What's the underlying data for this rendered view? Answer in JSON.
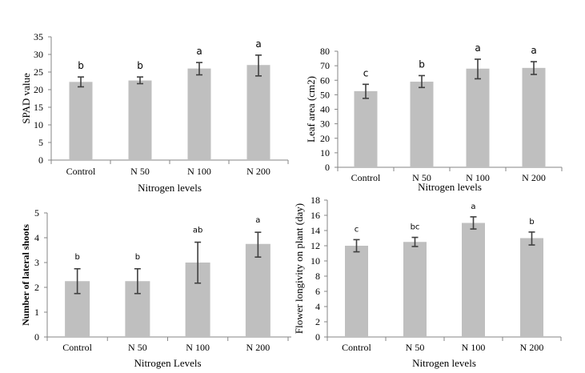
{
  "chart_data": [
    {
      "id": "spad",
      "type": "bar",
      "title": "",
      "xlabel": "Nitrogen levels",
      "ylabel": "SPAD value",
      "categories": [
        "Control",
        "N 50",
        "N 100",
        "N 200"
      ],
      "values": [
        22.2,
        22.6,
        26.0,
        27.0
      ],
      "error_low": [
        20.8,
        21.7,
        24.2,
        23.9
      ],
      "error_high": [
        23.6,
        23.6,
        27.7,
        29.8
      ],
      "significance": [
        "b",
        "b",
        "a",
        "a"
      ],
      "ylim": [
        0,
        35
      ],
      "yticks": [
        0,
        5,
        10,
        15,
        20,
        25,
        30,
        35
      ],
      "grid": false,
      "bar_color": "#bfbfbf"
    },
    {
      "id": "leaf-area",
      "type": "bar",
      "title": "",
      "xlabel": "Nitrogen levels",
      "ylabel": "Leaf area (cm2)",
      "categories": [
        "Control",
        "N 50",
        "N 100",
        "N 200"
      ],
      "values": [
        52.5,
        59.0,
        68.0,
        68.5
      ],
      "error_low": [
        47.5,
        55.0,
        61.0,
        64.0
      ],
      "error_high": [
        57.2,
        63.2,
        74.5,
        72.8
      ],
      "significance": [
        "c",
        "b",
        "a",
        "a"
      ],
      "ylim": [
        0,
        80
      ],
      "yticks": [
        0,
        10,
        20,
        30,
        40,
        50,
        60,
        70,
        80
      ],
      "grid": false,
      "bar_color": "#bfbfbf"
    },
    {
      "id": "lateral-shoots",
      "type": "bar",
      "title": "",
      "xlabel": "Nitrogen Levels",
      "ylabel": "Number of lateral shoots",
      "categories": [
        "Control",
        "N 50",
        "N 100",
        "N 200"
      ],
      "values": [
        2.25,
        2.25,
        3.0,
        3.75
      ],
      "error_low": [
        1.75,
        1.75,
        2.17,
        3.22
      ],
      "error_high": [
        2.75,
        2.75,
        3.82,
        4.22
      ],
      "significance": [
        "b",
        "b",
        "ab",
        "a"
      ],
      "ylim": [
        0,
        5
      ],
      "yticks": [
        0,
        1,
        2,
        3,
        4,
        5
      ],
      "grid": false,
      "bar_color": "#bfbfbf"
    },
    {
      "id": "flower-longevity",
      "type": "bar",
      "title": "",
      "xlabel": "Nitrogen levels",
      "ylabel": "Flower longivity on plant (day)",
      "categories": [
        "Control",
        "N 50",
        "N 100",
        "N 200"
      ],
      "values": [
        12.0,
        12.5,
        15.0,
        13.0
      ],
      "error_low": [
        11.2,
        11.9,
        14.2,
        12.1
      ],
      "error_high": [
        12.8,
        13.1,
        15.8,
        13.8
      ],
      "significance": [
        "c",
        "bc",
        "a",
        "b"
      ],
      "ylim": [
        0,
        18
      ],
      "yticks": [
        0,
        2,
        4,
        6,
        8,
        10,
        12,
        14,
        16,
        18
      ],
      "grid": false,
      "bar_color": "#bfbfbf"
    }
  ]
}
